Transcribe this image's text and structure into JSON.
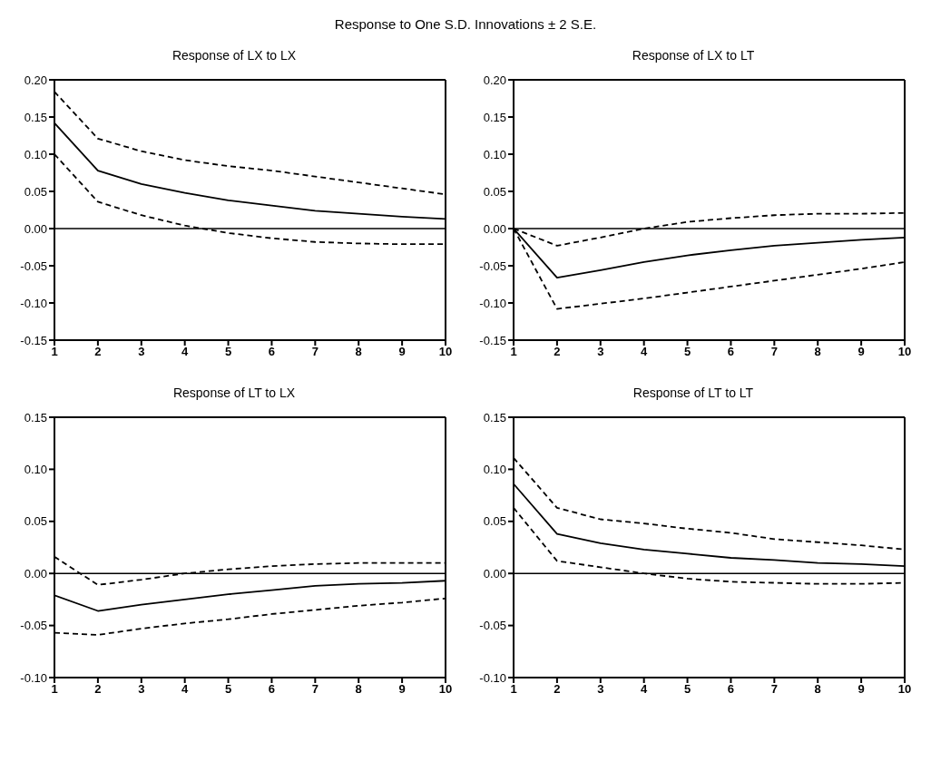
{
  "chart_data": [
    {
      "type": "line",
      "title": "Response of LX to LX",
      "annotations": [
        "Response to One S.D. Innovations ± 2 S.E."
      ],
      "x": [
        1,
        2,
        3,
        4,
        5,
        6,
        7,
        8,
        9,
        10
      ],
      "xlim": [
        1,
        10
      ],
      "xticks": [
        1,
        2,
        3,
        4,
        5,
        6,
        7,
        8,
        9,
        10
      ],
      "ylim": [
        -0.15,
        0.2
      ],
      "yticks": [
        -0.15,
        {
          "value": -0.1,
          "label": "-0.10"
        },
        -0.05,
        {
          "value": 0,
          "label": "0.00"
        },
        0.05,
        {
          "value": 0.1,
          "label": "0.10"
        },
        0.15,
        {
          "value": 0.2,
          "label": "0.20"
        }
      ],
      "grid": false,
      "legend": false,
      "marker": "none",
      "ref_lines": [
        {
          "axis": "y",
          "value": 0,
          "color": "#000000",
          "line_style": "solid"
        }
      ],
      "series": [
        {
          "color": "#000000",
          "line_style": "dashed",
          "values": [
            0.184,
            0.121,
            0.104,
            0.092,
            0.084,
            0.078,
            0.07,
            0.062,
            0.054,
            0.046
          ]
        },
        {
          "color": "#000000",
          "line_style": "solid",
          "values": [
            0.142,
            0.078,
            0.06,
            0.048,
            0.038,
            0.031,
            0.024,
            0.02,
            0.016,
            0.013
          ]
        },
        {
          "color": "#000000",
          "line_style": "dashed",
          "values": [
            0.1,
            0.036,
            0.018,
            0.004,
            -0.006,
            -0.013,
            -0.018,
            -0.02,
            -0.021,
            -0.021
          ]
        }
      ]
    },
    {
      "type": "line",
      "title": "Response of LX to LT",
      "x": [
        1,
        2,
        3,
        4,
        5,
        6,
        7,
        8,
        9,
        10
      ],
      "xlim": [
        1,
        10
      ],
      "xticks": [
        1,
        2,
        3,
        4,
        5,
        6,
        7,
        8,
        9,
        10
      ],
      "ylim": [
        -0.15,
        0.2
      ],
      "yticks": [
        -0.15,
        {
          "value": -0.1,
          "label": "-0.10"
        },
        -0.05,
        {
          "value": 0,
          "label": "0.00"
        },
        0.05,
        {
          "value": 0.1,
          "label": "0.10"
        },
        0.15,
        {
          "value": 0.2,
          "label": "0.20"
        }
      ],
      "grid": false,
      "legend": false,
      "marker": "none",
      "ref_lines": [
        {
          "axis": "y",
          "value": 0,
          "color": "#000000",
          "line_style": "solid"
        }
      ],
      "series": [
        {
          "color": "#000000",
          "line_style": "dashed",
          "values": [
            0,
            -0.023,
            -0.012,
            0,
            0.009,
            0.014,
            0.018,
            0.02,
            0.02,
            0.021
          ]
        },
        {
          "color": "#000000",
          "line_style": "solid",
          "values": [
            0,
            -0.066,
            -0.056,
            -0.045,
            -0.036,
            -0.029,
            -0.023,
            -0.019,
            -0.015,
            -0.012
          ]
        },
        {
          "color": "#000000",
          "line_style": "dashed",
          "values": [
            0,
            -0.108,
            -0.101,
            -0.094,
            -0.086,
            -0.078,
            -0.07,
            -0.062,
            -0.054,
            -0.045
          ]
        }
      ]
    },
    {
      "type": "line",
      "title": "Response of LT to LX",
      "x": [
        1,
        2,
        3,
        4,
        5,
        6,
        7,
        8,
        9,
        10
      ],
      "xlim": [
        1,
        10
      ],
      "xticks": [
        1,
        2,
        3,
        4,
        5,
        6,
        7,
        8,
        9,
        10
      ],
      "ylim": [
        -0.1,
        0.15
      ],
      "yticks": [
        {
          "value": -0.1,
          "label": "-0.10"
        },
        -0.05,
        {
          "value": 0,
          "label": "0.00"
        },
        0.05,
        {
          "value": 0.1,
          "label": "0.10"
        },
        0.15
      ],
      "grid": false,
      "legend": false,
      "marker": "none",
      "ref_lines": [
        {
          "axis": "y",
          "value": 0,
          "color": "#000000",
          "line_style": "solid"
        }
      ],
      "series": [
        {
          "color": "#000000",
          "line_style": "dashed",
          "values": [
            0.016,
            -0.011,
            -0.006,
            0,
            0.004,
            0.007,
            0.009,
            0.01,
            0.01,
            0.01
          ]
        },
        {
          "color": "#000000",
          "line_style": "solid",
          "values": [
            -0.021,
            -0.036,
            -0.03,
            -0.025,
            -0.02,
            -0.016,
            -0.012,
            -0.01,
            -0.009,
            -0.007
          ]
        },
        {
          "color": "#000000",
          "line_style": "dashed",
          "values": [
            -0.057,
            -0.059,
            -0.053,
            -0.048,
            -0.044,
            -0.039,
            -0.035,
            -0.031,
            -0.028,
            -0.024
          ]
        }
      ]
    },
    {
      "type": "line",
      "title": "Response of LT to LT",
      "x": [
        1,
        2,
        3,
        4,
        5,
        6,
        7,
        8,
        9,
        10
      ],
      "xlim": [
        1,
        10
      ],
      "xticks": [
        1,
        2,
        3,
        4,
        5,
        6,
        7,
        8,
        9,
        10
      ],
      "ylim": [
        -0.1,
        0.15
      ],
      "yticks": [
        {
          "value": -0.1,
          "label": "-0.10"
        },
        -0.05,
        {
          "value": 0,
          "label": "0.00"
        },
        0.05,
        {
          "value": 0.1,
          "label": "0.10"
        },
        0.15
      ],
      "grid": false,
      "legend": false,
      "marker": "none",
      "ref_lines": [
        {
          "axis": "y",
          "value": 0,
          "color": "#000000",
          "line_style": "solid"
        }
      ],
      "series": [
        {
          "color": "#000000",
          "line_style": "dashed",
          "values": [
            0.111,
            0.063,
            0.052,
            0.048,
            0.043,
            0.039,
            0.033,
            0.03,
            0.027,
            0.023
          ]
        },
        {
          "color": "#000000",
          "line_style": "solid",
          "values": [
            0.086,
            0.038,
            0.029,
            0.023,
            0.019,
            0.015,
            0.013,
            0.01,
            0.009,
            0.007
          ]
        },
        {
          "color": "#000000",
          "line_style": "dashed",
          "values": [
            0.063,
            0.012,
            0.006,
            0,
            -0.005,
            -0.008,
            -0.009,
            -0.01,
            -0.01,
            -0.009
          ]
        }
      ]
    }
  ]
}
